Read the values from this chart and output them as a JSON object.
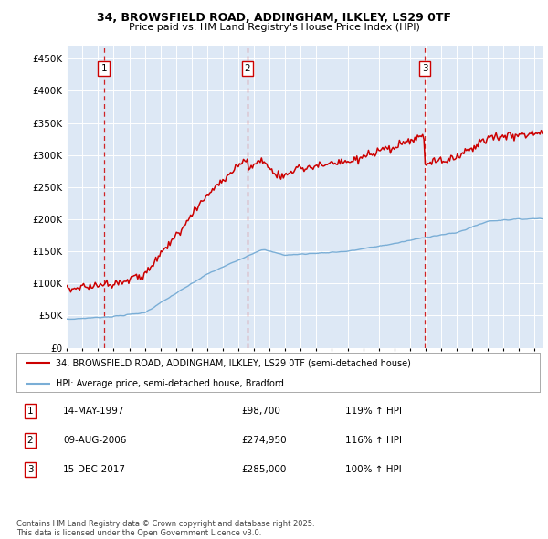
{
  "title1": "34, BROWSFIELD ROAD, ADDINGHAM, ILKLEY, LS29 0TF",
  "title2": "Price paid vs. HM Land Registry's House Price Index (HPI)",
  "legend_line1": "34, BROWSFIELD ROAD, ADDINGHAM, ILKLEY, LS29 0TF (semi-detached house)",
  "legend_line2": "HPI: Average price, semi-detached house, Bradford",
  "footer": "Contains HM Land Registry data © Crown copyright and database right 2025.\nThis data is licensed under the Open Government Licence v3.0.",
  "sale_info": [
    [
      "1",
      "14-MAY-1997",
      "£98,700",
      "119% ↑ HPI"
    ],
    [
      "2",
      "09-AUG-2006",
      "£274,950",
      "116% ↑ HPI"
    ],
    [
      "3",
      "15-DEC-2017",
      "£285,000",
      "100% ↑ HPI"
    ]
  ],
  "red_color": "#cc0000",
  "blue_color": "#7aaed6",
  "bg_color": "#dde8f5",
  "grid_color": "#ffffff",
  "annotation_border_color": "#cc0000",
  "ylim": [
    0,
    470000
  ],
  "yticks": [
    0,
    50000,
    100000,
    150000,
    200000,
    250000,
    300000,
    350000,
    400000,
    450000
  ],
  "xlim_start": 1995.0,
  "xlim_end": 2025.5,
  "sale1_year": 1997.37,
  "sale2_year": 2006.58,
  "sale3_year": 2017.96,
  "sale1_price": 98700,
  "sale2_price": 274950,
  "sale3_price": 285000
}
